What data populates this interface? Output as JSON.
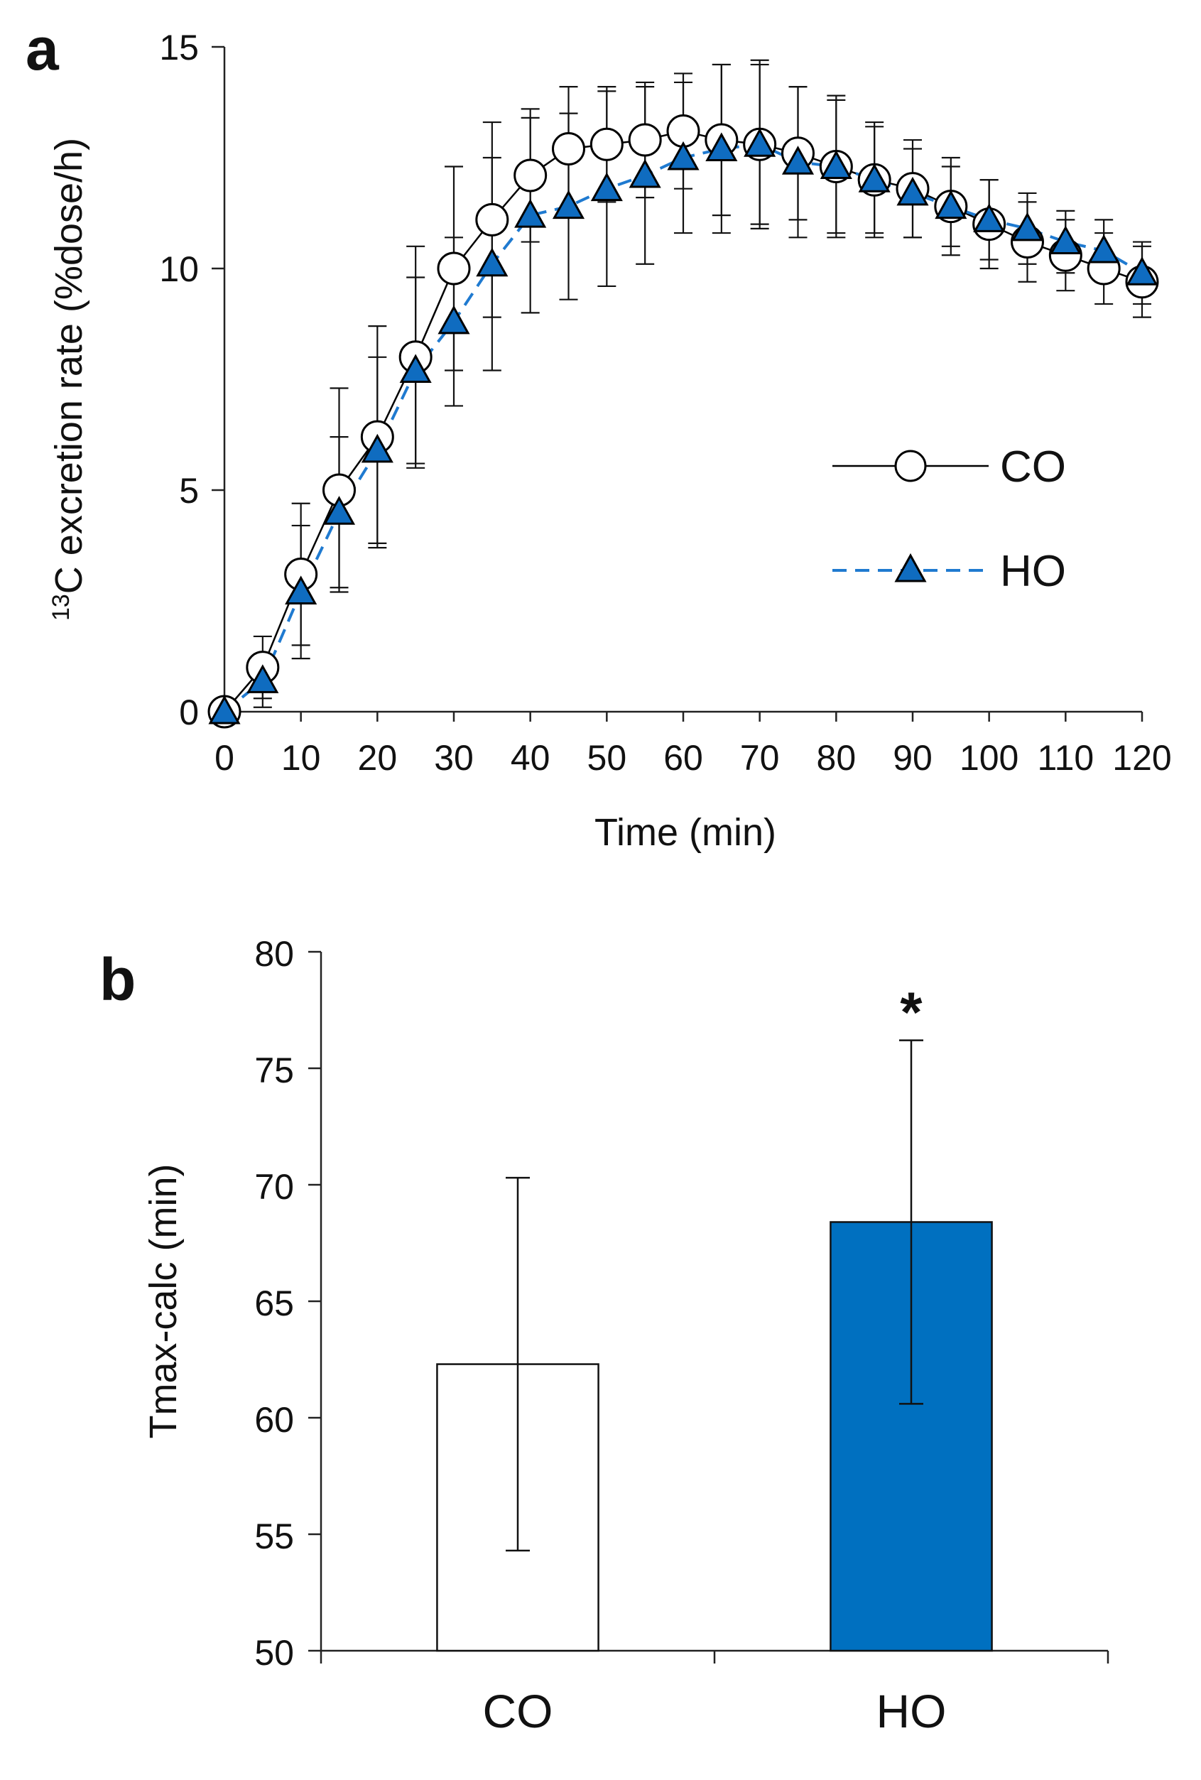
{
  "chart_data": [
    {
      "panel": "a",
      "type": "line",
      "xlabel": "Time (min)",
      "ylabel_sup": "13",
      "ylabel": "C excretion rate (%dose/h)",
      "xlim": [
        0,
        120
      ],
      "ylim": [
        0,
        15
      ],
      "xticks": [
        0,
        10,
        20,
        30,
        40,
        50,
        60,
        70,
        80,
        90,
        100,
        110,
        120
      ],
      "yticks": [
        0,
        5,
        10,
        15
      ],
      "legend_position": "middle-right",
      "x": [
        0,
        5,
        10,
        15,
        20,
        25,
        30,
        35,
        40,
        45,
        50,
        55,
        60,
        65,
        70,
        75,
        80,
        85,
        90,
        95,
        100,
        105,
        110,
        115,
        120
      ],
      "series": [
        {
          "name": "CO",
          "marker": "circle",
          "line": "solid",
          "color": "#000000",
          "fill": "#ffffff",
          "values": [
            0,
            1.0,
            3.1,
            5.0,
            6.2,
            8.0,
            10.0,
            11.1,
            12.1,
            12.7,
            12.8,
            12.9,
            13.1,
            12.9,
            12.8,
            12.6,
            12.3,
            12.0,
            11.8,
            11.4,
            11.0,
            10.6,
            10.3,
            10.0,
            9.7
          ],
          "errors": [
            0,
            0.7,
            1.6,
            2.3,
            2.5,
            2.5,
            2.3,
            2.2,
            1.5,
            1.4,
            1.3,
            1.3,
            1.3,
            1.7,
            1.8,
            1.5,
            1.6,
            1.3,
            1.1,
            1.1,
            1.0,
            0.9,
            0.8,
            0.8,
            0.8
          ]
        },
        {
          "name": "HO",
          "marker": "triangle",
          "line": "dashed",
          "color": "#1f7ad0",
          "fill": "#0f6cc0",
          "values": [
            0,
            0.7,
            2.7,
            4.5,
            5.9,
            7.7,
            8.8,
            10.1,
            11.2,
            11.4,
            11.8,
            12.1,
            12.5,
            12.7,
            12.8,
            12.4,
            12.3,
            12.0,
            11.7,
            11.4,
            11.1,
            10.9,
            10.6,
            10.4,
            9.9
          ],
          "errors": [
            0,
            0.6,
            1.5,
            1.7,
            2.1,
            2.1,
            1.9,
            2.4,
            2.2,
            2.1,
            2.2,
            2.0,
            1.7,
            1.9,
            1.9,
            1.7,
            1.5,
            1.2,
            1.0,
            0.9,
            0.9,
            0.8,
            0.7,
            0.7,
            0.7
          ]
        }
      ]
    },
    {
      "panel": "b",
      "type": "bar",
      "ylabel": "Tmax-calc (min)",
      "ylim": [
        50,
        80
      ],
      "yticks": [
        50,
        55,
        60,
        65,
        70,
        75,
        80
      ],
      "categories": [
        "CO",
        "HO"
      ],
      "values": [
        62.3,
        68.4
      ],
      "errors": [
        8.0,
        7.8
      ],
      "colors": [
        "#ffffff",
        "#0070c0"
      ],
      "annotation": {
        "category": "HO",
        "text": "*"
      }
    }
  ]
}
